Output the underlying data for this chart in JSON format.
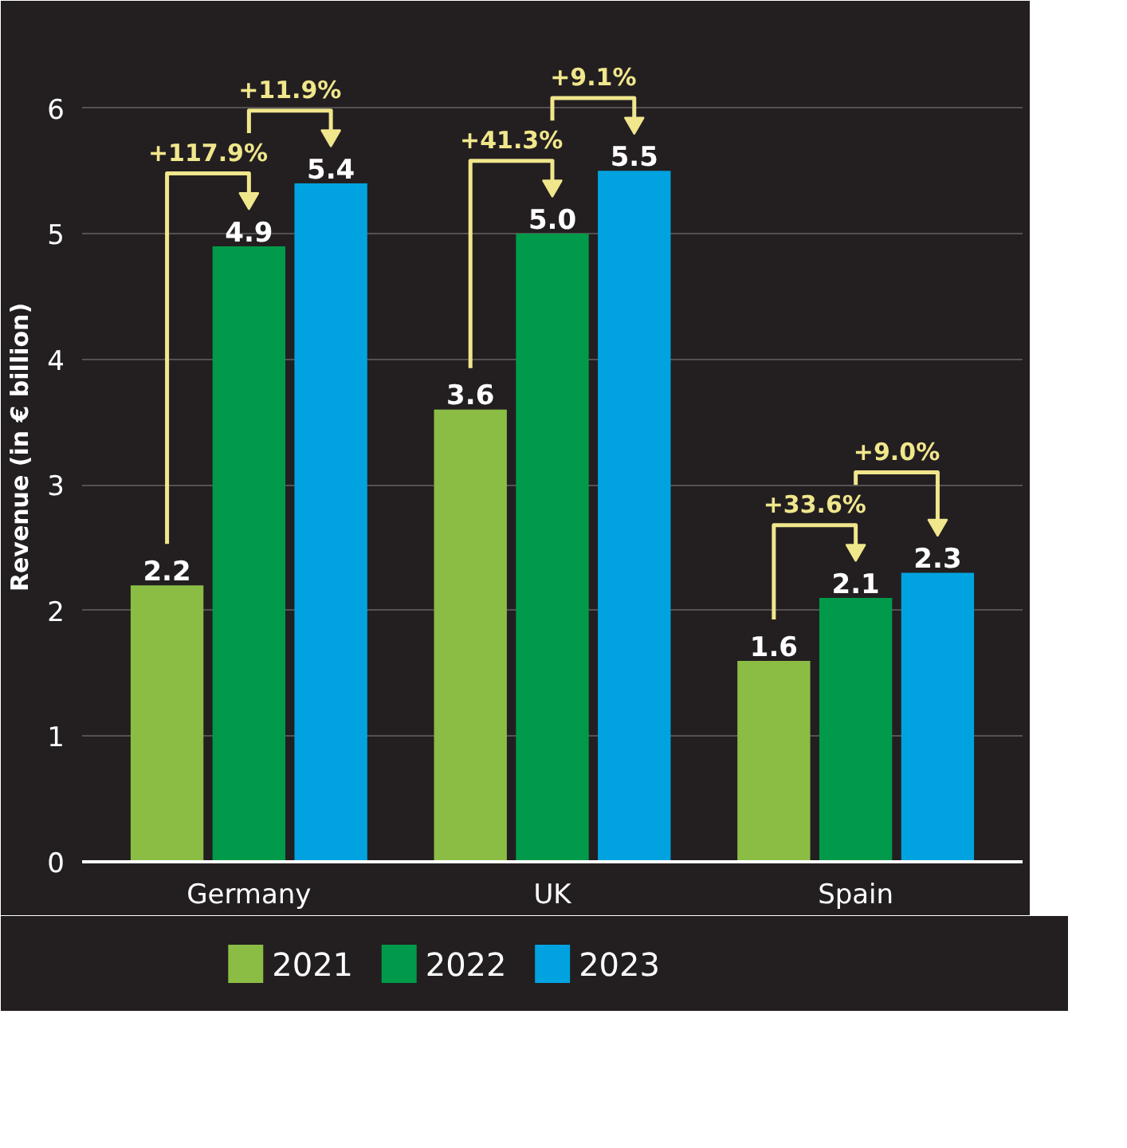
{
  "chart_data": {
    "type": "bar",
    "ylabel": "Revenue (in € billion)",
    "categories": [
      "Germany",
      "UK",
      "Spain"
    ],
    "series": [
      {
        "name": "2021",
        "color": "#8bbd45",
        "values": [
          2.2,
          3.6,
          1.6
        ],
        "value_labels": [
          "2.2",
          "3.6",
          "1.6"
        ]
      },
      {
        "name": "2022",
        "color": "#009a4a",
        "values": [
          4.9,
          5.0,
          2.1
        ],
        "value_labels": [
          "4.9",
          "5.0",
          "2.1"
        ]
      },
      {
        "name": "2023",
        "color": "#00a3e0",
        "values": [
          5.4,
          5.5,
          2.3
        ],
        "value_labels": [
          "5.4",
          "5.5",
          "2.3"
        ]
      }
    ],
    "ylim": [
      0,
      6.6
    ],
    "yticks": [
      0,
      1,
      2,
      3,
      4,
      5,
      6
    ],
    "grid": "y",
    "legend": "bottom",
    "data_labels": true,
    "annotations": [
      "+117.9%",
      "+11.9%",
      "+41.3%",
      "+9.1%",
      "+33.6%",
      "+9.0%"
    ]
  }
}
